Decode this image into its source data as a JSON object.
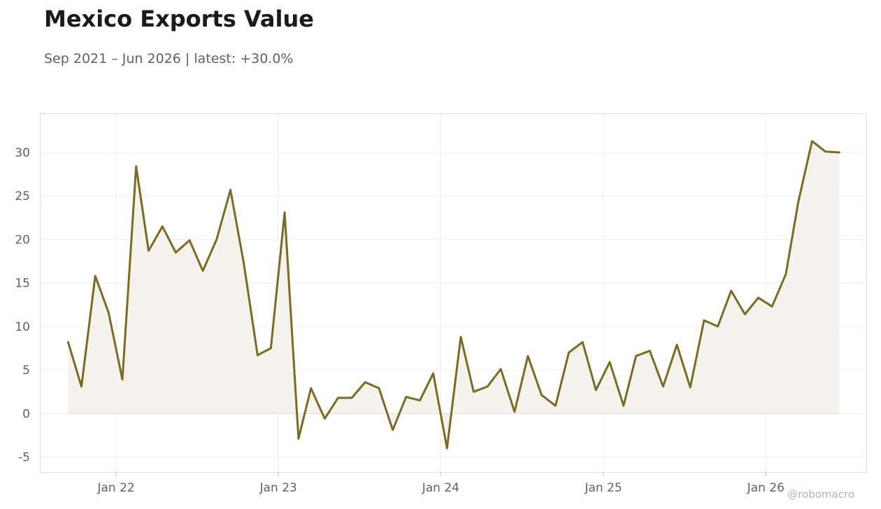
{
  "header": {
    "title": "Mexico Exports Value",
    "subtitle": "Sep 2021 – Jun 2026 | latest: +30.0%"
  },
  "watermark": "@robomacro",
  "colors": {
    "line": "#7d6a21",
    "fill": "#f4f2ec",
    "grid": "#eeeeee",
    "frame": "#dddddd"
  },
  "chart_data": {
    "type": "area",
    "title": "Mexico Exports Value",
    "subtitle": "Sep 2021 – Jun 2026 | latest: +30.0%",
    "xlabel": "",
    "ylabel": "",
    "x_range": [
      "2021-07-15",
      "2026-08-15"
    ],
    "ylim": [
      -6.8,
      34.5
    ],
    "yticks": [
      -5,
      0,
      5,
      10,
      15,
      20,
      25,
      30
    ],
    "ytick_labels": [
      "-5",
      "0",
      "5",
      "10",
      "15",
      "20",
      "25",
      "30"
    ],
    "xticks": [
      "2022-01-01",
      "2023-01-01",
      "2024-01-01",
      "2025-01-01",
      "2026-01-01"
    ],
    "xtick_labels": [
      "Jan 22",
      "Jan 23",
      "Jan 24",
      "Jan 25",
      "Jan 26"
    ],
    "grid": true,
    "series": [
      {
        "x": [
          "2021-09",
          "2021-10",
          "2021-11",
          "2021-12",
          "2022-01",
          "2022-02",
          "2022-03",
          "2022-04",
          "2022-05",
          "2022-06",
          "2022-07",
          "2022-08",
          "2022-09",
          "2022-10",
          "2022-11",
          "2022-12",
          "2023-01",
          "2023-02",
          "2023-03",
          "2023-04",
          "2023-05",
          "2023-06",
          "2023-07",
          "2023-08",
          "2023-09",
          "2023-10",
          "2023-11",
          "2023-12",
          "2024-01",
          "2024-02",
          "2024-03",
          "2024-04",
          "2024-05",
          "2024-06",
          "2024-07",
          "2024-08",
          "2024-09",
          "2024-10",
          "2024-11",
          "2024-12",
          "2025-01",
          "2025-02",
          "2025-03",
          "2025-04",
          "2025-05",
          "2025-06",
          "2025-07",
          "2025-08",
          "2025-09",
          "2025-10",
          "2025-11",
          "2025-12",
          "2026-01",
          "2026-02",
          "2026-03",
          "2026-04",
          "2026-05",
          "2026-06"
        ],
        "values": [
          8.2,
          3.1,
          15.8,
          11.6,
          3.9,
          28.4,
          18.7,
          21.5,
          18.5,
          19.9,
          16.4,
          20.0,
          25.7,
          17.3,
          6.7,
          7.5,
          23.1,
          -2.9,
          2.9,
          -0.6,
          1.8,
          1.8,
          3.6,
          2.9,
          -1.9,
          1.9,
          1.5,
          4.6,
          -4.0,
          8.8,
          2.5,
          3.1,
          5.1,
          0.2,
          6.6,
          2.1,
          0.9,
          7.0,
          8.2,
          2.7,
          5.9,
          0.9,
          6.6,
          7.2,
          3.1,
          7.9,
          3.0,
          10.7,
          10.0,
          14.1,
          11.4,
          13.3,
          12.3,
          16.0,
          24.3,
          31.3,
          30.1,
          30.0
        ]
      }
    ]
  }
}
